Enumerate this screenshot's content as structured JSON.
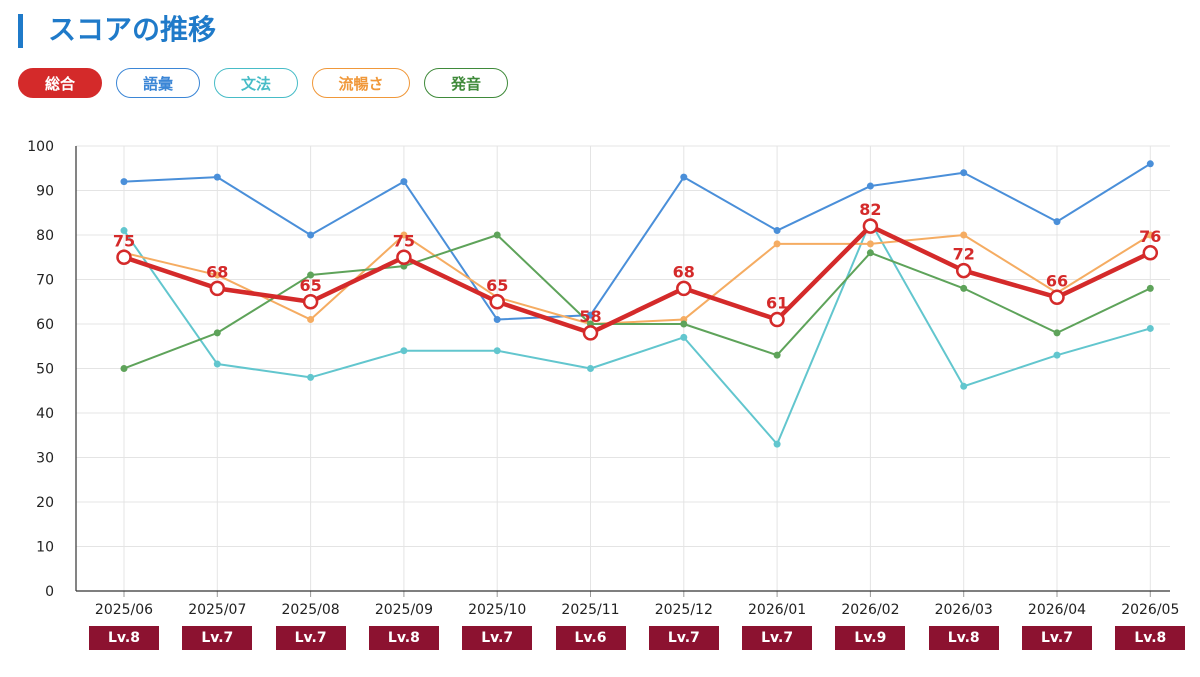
{
  "header": {
    "title": "スコアの推移",
    "accent_color": "#1f7ac9"
  },
  "legend": [
    {
      "label": "総合",
      "color": "#d42a2a",
      "active": true
    },
    {
      "label": "語彙",
      "color": "#3b86d6",
      "active": false
    },
    {
      "label": "文法",
      "color": "#47bcc7",
      "active": false
    },
    {
      "label": "流暢さ",
      "color": "#f0983a",
      "active": false
    },
    {
      "label": "発音",
      "color": "#3f8a3a",
      "active": false
    }
  ],
  "chart_data": {
    "type": "line",
    "title": "",
    "xlabel": "",
    "ylabel": "",
    "ylim": [
      0,
      100
    ],
    "yticks": [
      0,
      10,
      20,
      30,
      40,
      50,
      60,
      70,
      80,
      90,
      100
    ],
    "grid": true,
    "categories": [
      "2025/06",
      "2025/07",
      "2025/08",
      "2025/09",
      "2025/10",
      "2025/11",
      "2025/12",
      "2026/01",
      "2026/02",
      "2026/03",
      "2026/04",
      "2026/05"
    ],
    "series": [
      {
        "name": "語彙",
        "color": "#4a8fd9",
        "values": [
          92,
          93,
          80,
          92,
          61,
          62,
          93,
          81,
          91,
          94,
          83,
          96
        ]
      },
      {
        "name": "文法",
        "color": "#62c6ce",
        "values": [
          81,
          51,
          48,
          54,
          54,
          50,
          57,
          33,
          83,
          46,
          53,
          59
        ]
      },
      {
        "name": "流暢さ",
        "color": "#f5ac62",
        "values": [
          76,
          71,
          61,
          80,
          66,
          60,
          61,
          78,
          78,
          80,
          67,
          80
        ]
      },
      {
        "name": "発音",
        "color": "#5ea35a",
        "values": [
          50,
          58,
          71,
          73,
          80,
          60,
          60,
          53,
          76,
          68,
          58,
          68
        ]
      },
      {
        "name": "総合",
        "color": "#d42a2a",
        "values": [
          75,
          68,
          65,
          75,
          65,
          58,
          68,
          61,
          82,
          72,
          66,
          76
        ],
        "highlight": true
      }
    ],
    "levels": [
      "Lv.8",
      "Lv.7",
      "Lv.7",
      "Lv.8",
      "Lv.7",
      "Lv.6",
      "Lv.7",
      "Lv.7",
      "Lv.9",
      "Lv.8",
      "Lv.7",
      "Lv.8"
    ],
    "level_color": "#8c1230"
  }
}
